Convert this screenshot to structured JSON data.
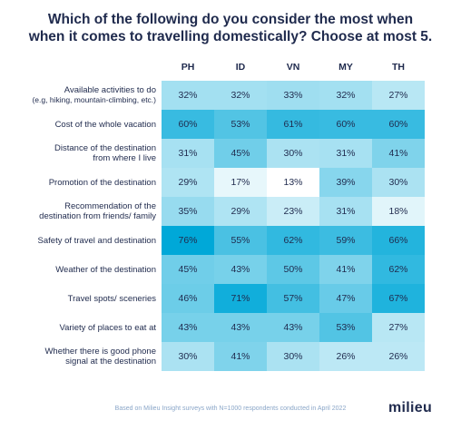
{
  "title": {
    "line1": "Which of the following do you consider the most when",
    "line2": "when it comes to travelling domestically? Choose at most 5."
  },
  "footnote": "Based on Milieu Insight surveys with N=1000 respondents conducted in April 2022",
  "logo": "milieu",
  "chart_data": {
    "type": "heatmap",
    "title": "Which of the following do you consider the most when when it comes to travelling domestically? Choose at most 5.",
    "columns": [
      "PH",
      "ID",
      "VN",
      "MY",
      "TH"
    ],
    "rows": [
      {
        "label": "Available activities to do",
        "sublabel": "(e.g, hiking, mountain-climbing, etc.)",
        "values": [
          32,
          32,
          33,
          32,
          27
        ]
      },
      {
        "label": "Cost of the whole vacation",
        "sublabel": "",
        "values": [
          60,
          53,
          61,
          60,
          60
        ]
      },
      {
        "label": "Distance of the destination",
        "sublabel": "from where I live",
        "values": [
          31,
          45,
          30,
          31,
          41
        ]
      },
      {
        "label": "Promotion of the destination",
        "sublabel": "",
        "values": [
          29,
          17,
          13,
          39,
          30
        ]
      },
      {
        "label": "Recommendation of the",
        "sublabel": "destination from friends/ family",
        "values": [
          35,
          29,
          23,
          31,
          18
        ]
      },
      {
        "label": "Safety of travel and destination",
        "sublabel": "",
        "values": [
          76,
          55,
          62,
          59,
          66
        ]
      },
      {
        "label": "Weather of the destination",
        "sublabel": "",
        "values": [
          45,
          43,
          50,
          41,
          62
        ]
      },
      {
        "label": "Travel spots/ sceneries",
        "sublabel": "",
        "values": [
          46,
          71,
          57,
          47,
          67
        ]
      },
      {
        "label": "Variety of places to eat at",
        "sublabel": "",
        "values": [
          43,
          43,
          43,
          53,
          27
        ]
      },
      {
        "label": "Whether there is good phone",
        "sublabel": "signal at the destination",
        "values": [
          30,
          41,
          30,
          26,
          26
        ]
      }
    ],
    "value_suffix": "%",
    "colors": {
      "low": "#ffffff",
      "high": "#00a8d8",
      "text": "#1f2a4d"
    }
  }
}
